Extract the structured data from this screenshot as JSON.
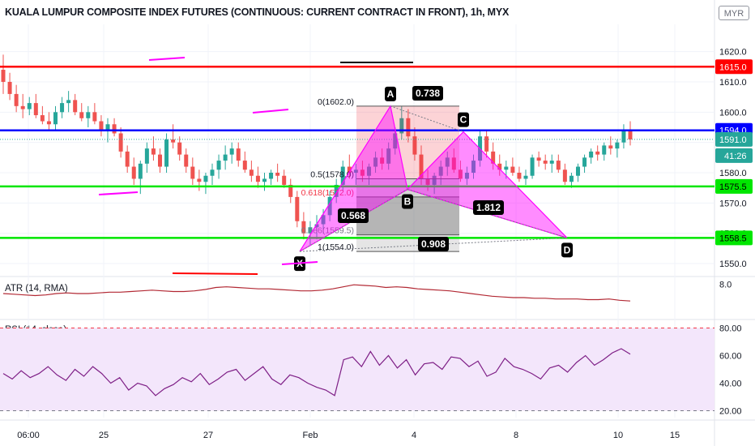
{
  "header": {
    "title": "KUALA LUMPUR COMPOSITE INDEX FUTURES (CONTINUOUS: CURRENT CONTRACT IN FRONT), 1h, MYX",
    "currency": "MYR"
  },
  "indicators": {
    "atr_label": "ATR (14, RMA)",
    "rsi_label": "RSI (14, close)"
  },
  "colors": {
    "up": "#26a69a",
    "down": "#ef5350",
    "red_line": "#ff0000",
    "blue_line": "#0000ff",
    "green_line": "#00e600",
    "pattern": "#ff00ff",
    "atr": "#b22833",
    "rsi": "#7e1f86",
    "rsi_band": "#f3e6fb"
  },
  "chart_data": [
    {
      "type": "candlestick",
      "ylim": [
        1546,
        1629
      ],
      "price_scale_ticks": [
        1550.0,
        1560.0,
        1570.0,
        1580.0,
        1590.0,
        1600.0,
        1610.0,
        1620.0
      ],
      "x_ticks": [
        "06:00",
        "25",
        "27",
        "Feb",
        "4",
        "8",
        "10",
        "15"
      ],
      "horizontal_levels": [
        {
          "value": 1615.0,
          "label": "1615.0",
          "color": "#ff0000"
        },
        {
          "value": 1594.0,
          "label": "1594.0",
          "color": "#0000ff"
        },
        {
          "value": 1575.5,
          "label": "1575.5",
          "color": "#00e600"
        },
        {
          "value": 1558.5,
          "label": "1558.5",
          "color": "#00e600"
        }
      ],
      "last_price": {
        "value": 1591.0,
        "label": "1591.0"
      },
      "countdown": "41:26",
      "harmonic_pattern": {
        "points": [
          {
            "name": "X",
            "price": 1554.0
          },
          {
            "name": "A",
            "price": 1602.0
          },
          {
            "name": "B",
            "price": 1574.5
          },
          {
            "name": "C",
            "price": 1593.5
          },
          {
            "name": "D",
            "price": 1558.5
          }
        ],
        "ratios": [
          {
            "text": "0.738",
            "between": "A-C"
          },
          {
            "text": "0.568",
            "between": "X-B"
          },
          {
            "text": "1.812",
            "between": "B-D"
          },
          {
            "text": "0.908",
            "between": "X-D"
          }
        ]
      },
      "fib_levels": [
        {
          "label": "0(1602.0)",
          "value": 1602.0
        },
        {
          "label": "0.5(1578.0)",
          "value": 1578.0
        },
        {
          "label": "0.618(1572.0)",
          "value": 1572.0
        },
        {
          "label": "0.886(1559.5)",
          "value": 1559.5
        },
        {
          "label": "1(1554.0)",
          "value": 1554.0
        }
      ],
      "candles": [
        [
          1614,
          1619,
          1606,
          1610
        ],
        [
          1610,
          1613,
          1604,
          1606
        ],
        [
          1606,
          1609,
          1600,
          1602
        ],
        [
          1602,
          1606,
          1598,
          1601
        ],
        [
          1601,
          1605,
          1599,
          1603
        ],
        [
          1603,
          1606,
          1598,
          1599
        ],
        [
          1599,
          1602,
          1596,
          1597
        ],
        [
          1597,
          1600,
          1594,
          1596
        ],
        [
          1596,
          1602,
          1594,
          1600
        ],
        [
          1600,
          1605,
          1598,
          1603
        ],
        [
          1603,
          1607,
          1600,
          1604
        ],
        [
          1604,
          1606,
          1599,
          1600
        ],
        [
          1600,
          1603,
          1597,
          1598
        ],
        [
          1598,
          1602,
          1595,
          1600
        ],
        [
          1600,
          1603,
          1596,
          1597
        ],
        [
          1597,
          1599,
          1592,
          1594
        ],
        [
          1594,
          1598,
          1590,
          1596
        ],
        [
          1596,
          1598,
          1592,
          1593
        ],
        [
          1593,
          1595,
          1585,
          1587
        ],
        [
          1587,
          1589,
          1580,
          1582
        ],
        [
          1582,
          1585,
          1576,
          1578
        ],
        [
          1578,
          1584,
          1573,
          1583
        ],
        [
          1583,
          1590,
          1580,
          1588
        ],
        [
          1588,
          1592,
          1584,
          1586
        ],
        [
          1586,
          1588,
          1580,
          1582
        ],
        [
          1582,
          1593,
          1580,
          1591
        ],
        [
          1591,
          1596,
          1588,
          1590
        ],
        [
          1590,
          1592,
          1584,
          1586
        ],
        [
          1586,
          1588,
          1580,
          1582
        ],
        [
          1582,
          1585,
          1576,
          1578
        ],
        [
          1578,
          1581,
          1574,
          1577
        ],
        [
          1577,
          1580,
          1573,
          1579
        ],
        [
          1579,
          1583,
          1576,
          1581
        ],
        [
          1581,
          1586,
          1578,
          1584
        ],
        [
          1584,
          1589,
          1581,
          1586
        ],
        [
          1586,
          1590,
          1583,
          1588
        ],
        [
          1588,
          1590,
          1582,
          1584
        ],
        [
          1584,
          1587,
          1580,
          1581
        ],
        [
          1581,
          1584,
          1577,
          1579
        ],
        [
          1579,
          1582,
          1575,
          1577
        ],
        [
          1577,
          1580,
          1574,
          1578
        ],
        [
          1578,
          1581,
          1576,
          1580
        ],
        [
          1580,
          1583,
          1577,
          1579
        ],
        [
          1579,
          1581,
          1575,
          1576
        ],
        [
          1576,
          1578,
          1570,
          1572
        ],
        [
          1572,
          1574,
          1562,
          1564
        ],
        [
          1564,
          1567,
          1558,
          1560
        ],
        [
          1560,
          1564,
          1556,
          1562
        ],
        [
          1562,
          1566,
          1558,
          1563
        ],
        [
          1563,
          1568,
          1560,
          1566
        ],
        [
          1566,
          1574,
          1564,
          1572
        ],
        [
          1572,
          1578,
          1570,
          1576
        ],
        [
          1576,
          1584,
          1574,
          1582
        ],
        [
          1582,
          1586,
          1578,
          1580
        ],
        [
          1580,
          1583,
          1576,
          1581
        ],
        [
          1581,
          1584,
          1577,
          1579
        ],
        [
          1579,
          1583,
          1576,
          1582
        ],
        [
          1582,
          1587,
          1580,
          1585
        ],
        [
          1585,
          1588,
          1581,
          1583
        ],
        [
          1583,
          1590,
          1581,
          1588
        ],
        [
          1588,
          1595,
          1586,
          1593
        ],
        [
          1593,
          1602,
          1591,
          1598
        ],
        [
          1598,
          1601,
          1590,
          1592
        ],
        [
          1592,
          1595,
          1584,
          1586
        ],
        [
          1586,
          1589,
          1576,
          1578
        ],
        [
          1578,
          1581,
          1574,
          1576
        ],
        [
          1576,
          1580,
          1573,
          1579
        ],
        [
          1579,
          1584,
          1576,
          1582
        ],
        [
          1582,
          1587,
          1579,
          1585
        ],
        [
          1585,
          1588,
          1580,
          1581
        ],
        [
          1581,
          1584,
          1577,
          1578
        ],
        [
          1578,
          1582,
          1576,
          1580
        ],
        [
          1580,
          1586,
          1578,
          1584
        ],
        [
          1584,
          1594,
          1582,
          1592
        ],
        [
          1592,
          1594,
          1585,
          1587
        ],
        [
          1587,
          1590,
          1581,
          1583
        ],
        [
          1583,
          1586,
          1579,
          1581
        ],
        [
          1581,
          1584,
          1578,
          1582
        ],
        [
          1582,
          1585,
          1579,
          1580
        ],
        [
          1580,
          1582,
          1577,
          1578
        ],
        [
          1578,
          1581,
          1576,
          1579
        ],
        [
          1579,
          1586,
          1578,
          1585
        ],
        [
          1585,
          1587,
          1582,
          1584
        ],
        [
          1584,
          1586,
          1581,
          1583
        ],
        [
          1583,
          1586,
          1580,
          1584
        ],
        [
          1584,
          1586,
          1580,
          1581
        ],
        [
          1581,
          1583,
          1576,
          1577
        ],
        [
          1577,
          1580,
          1575,
          1579
        ],
        [
          1579,
          1583,
          1577,
          1582
        ],
        [
          1582,
          1586,
          1580,
          1585
        ],
        [
          1585,
          1588,
          1583,
          1587
        ],
        [
          1587,
          1589,
          1584,
          1586
        ],
        [
          1586,
          1590,
          1584,
          1589
        ],
        [
          1589,
          1592,
          1586,
          1588
        ],
        [
          1588,
          1591,
          1585,
          1590
        ],
        [
          1590,
          1596,
          1588,
          1594
        ],
        [
          1594,
          1597,
          1589,
          1591
        ]
      ]
    },
    {
      "type": "line",
      "name": "ATR (14, RMA)",
      "ylim": [
        3.0,
        9.0
      ],
      "y_ticks": [
        "8.0"
      ],
      "values": [
        6.6,
        6.5,
        6.4,
        6.3,
        6.4,
        6.6,
        6.7,
        6.6,
        6.6,
        6.7,
        6.8,
        6.8,
        6.9,
        7.0,
        7.1,
        7.0,
        6.9,
        6.9,
        7.0,
        7.2,
        7.5,
        7.6,
        7.5,
        7.4,
        7.3,
        7.3,
        7.2,
        7.1,
        7.0,
        7.0,
        7.1,
        7.3,
        7.6,
        7.9,
        7.8,
        7.7,
        7.5,
        7.6,
        7.5,
        7.3,
        7.2,
        7.1,
        7.0,
        6.8,
        6.6,
        6.4,
        6.2,
        6.1,
        6.0,
        6.0,
        5.9,
        5.9,
        5.8,
        5.8,
        5.8,
        5.7,
        5.7,
        5.8,
        5.6,
        5.5
      ]
    },
    {
      "type": "line",
      "name": "RSI (14, close)",
      "ylim": [
        15,
        85
      ],
      "y_ticks": [
        "20.00",
        "40.00",
        "60.00",
        "80.00"
      ],
      "band": [
        20,
        80
      ],
      "values": [
        47,
        43,
        49,
        44,
        47,
        52,
        46,
        42,
        50,
        45,
        52,
        47,
        40,
        44,
        35,
        40,
        38,
        31,
        36,
        39,
        44,
        41,
        47,
        39,
        43,
        48,
        50,
        42,
        47,
        52,
        43,
        39,
        46,
        44,
        40,
        37,
        35,
        31,
        57,
        59,
        52,
        63,
        53,
        60,
        51,
        57,
        46,
        54,
        55,
        50,
        59,
        58,
        52,
        56,
        45,
        48,
        58,
        52,
        50,
        47,
        43,
        51,
        53,
        48,
        55,
        60,
        53,
        57,
        62,
        65,
        61
      ]
    }
  ]
}
